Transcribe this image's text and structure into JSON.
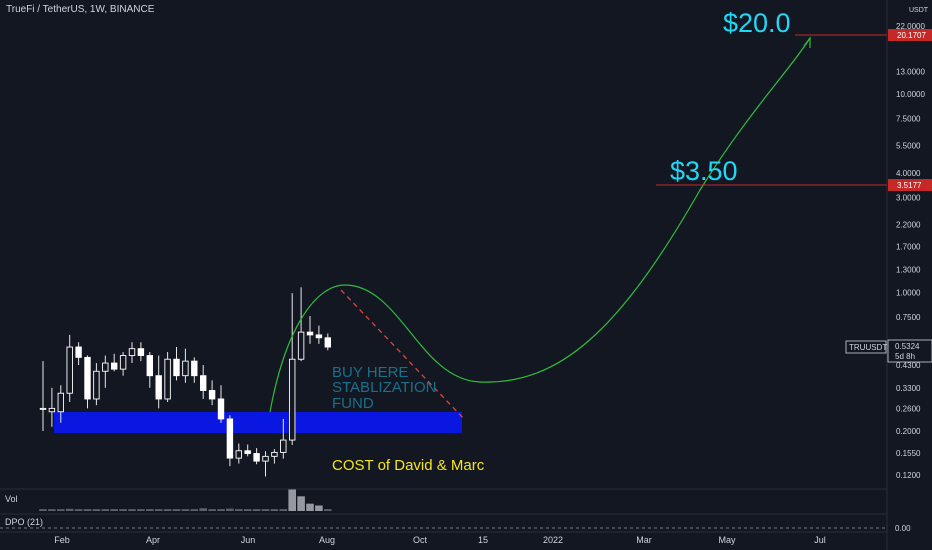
{
  "header": {
    "title": "TrueFi / TetherUS, 1W, BINANCE"
  },
  "panels": {
    "volume_label": "Vol",
    "dpo_label": "DPO (21)",
    "dpo_value": "0.00"
  },
  "annotations": {
    "target_20": "$20.0",
    "target_350": "$3.50",
    "buy_text": [
      "BUY HERE",
      "STABLIZATION",
      "FUND"
    ],
    "cost_text": "COST of David & Marc"
  },
  "price_tags": {
    "red_high": "20.1707",
    "red_mid": "3.5177",
    "symbol": "TRUUSDT",
    "last": "0.5324",
    "countdown": "5d 8h"
  },
  "colors": {
    "background": "#131722",
    "grid": "#1e222d",
    "text": "#d1d4dc",
    "candle_up": "#ffffff",
    "candle_down": "#ffffff",
    "green_path": "#2ebd3b",
    "red_dash": "#e0443a",
    "blue_zone": "#0a17e0",
    "cyan_text": "#1fd8f5",
    "teal_text": "#1a6f89",
    "yellow_text": "#f5e61c",
    "red_tag": "#c62828",
    "volume": "#b2b5be"
  },
  "chart_data": {
    "type": "candlestick",
    "title": "TrueFi / TetherUS, 1W, BINANCE",
    "y_axis": {
      "scale": "log",
      "unit": "USDT",
      "ticks": [
        "22.0000",
        "20.1707",
        "13.0000",
        "10.0000",
        "7.5000",
        "5.5000",
        "4.0000",
        "3.5177",
        "3.0000",
        "2.2000",
        "1.7000",
        "1.3000",
        "1.0000",
        "0.7500",
        "0.5324",
        "0.4300",
        "0.3300",
        "0.2600",
        "0.2000",
        "0.1550",
        "0.1200"
      ]
    },
    "x_axis": {
      "ticks": [
        "Feb",
        "Apr",
        "Jun",
        "Aug",
        "Oct",
        "15",
        "2022",
        "Mar",
        "May",
        "Jul"
      ]
    },
    "candles": [
      {
        "o": 0.26,
        "h": 0.45,
        "l": 0.2,
        "c": 0.26
      },
      {
        "o": 0.25,
        "h": 0.33,
        "l": 0.21,
        "c": 0.26
      },
      {
        "o": 0.25,
        "h": 0.34,
        "l": 0.22,
        "c": 0.31
      },
      {
        "o": 0.31,
        "h": 0.61,
        "l": 0.28,
        "c": 0.53
      },
      {
        "o": 0.53,
        "h": 0.56,
        "l": 0.43,
        "c": 0.47
      },
      {
        "o": 0.47,
        "h": 0.48,
        "l": 0.26,
        "c": 0.29
      },
      {
        "o": 0.29,
        "h": 0.44,
        "l": 0.27,
        "c": 0.4
      },
      {
        "o": 0.4,
        "h": 0.48,
        "l": 0.33,
        "c": 0.44
      },
      {
        "o": 0.44,
        "h": 0.49,
        "l": 0.4,
        "c": 0.41
      },
      {
        "o": 0.41,
        "h": 0.5,
        "l": 0.38,
        "c": 0.48
      },
      {
        "o": 0.48,
        "h": 0.56,
        "l": 0.44,
        "c": 0.52
      },
      {
        "o": 0.52,
        "h": 0.56,
        "l": 0.45,
        "c": 0.48
      },
      {
        "o": 0.48,
        "h": 0.5,
        "l": 0.33,
        "c": 0.38
      },
      {
        "o": 0.38,
        "h": 0.48,
        "l": 0.26,
        "c": 0.29
      },
      {
        "o": 0.29,
        "h": 0.5,
        "l": 0.28,
        "c": 0.46
      },
      {
        "o": 0.46,
        "h": 0.53,
        "l": 0.36,
        "c": 0.38
      },
      {
        "o": 0.38,
        "h": 0.52,
        "l": 0.35,
        "c": 0.45
      },
      {
        "o": 0.45,
        "h": 0.47,
        "l": 0.35,
        "c": 0.38
      },
      {
        "o": 0.38,
        "h": 0.43,
        "l": 0.29,
        "c": 0.32
      },
      {
        "o": 0.32,
        "h": 0.36,
        "l": 0.27,
        "c": 0.29
      },
      {
        "o": 0.29,
        "h": 0.34,
        "l": 0.22,
        "c": 0.23
      },
      {
        "o": 0.23,
        "h": 0.24,
        "l": 0.133,
        "c": 0.146
      },
      {
        "o": 0.146,
        "h": 0.173,
        "l": 0.137,
        "c": 0.159
      },
      {
        "o": 0.159,
        "h": 0.171,
        "l": 0.149,
        "c": 0.154
      },
      {
        "o": 0.154,
        "h": 0.164,
        "l": 0.136,
        "c": 0.141
      },
      {
        "o": 0.141,
        "h": 0.158,
        "l": 0.118,
        "c": 0.149
      },
      {
        "o": 0.149,
        "h": 0.162,
        "l": 0.137,
        "c": 0.156
      },
      {
        "o": 0.156,
        "h": 0.23,
        "l": 0.145,
        "c": 0.18
      },
      {
        "o": 0.18,
        "h": 0.99,
        "l": 0.17,
        "c": 0.46
      },
      {
        "o": 0.46,
        "h": 1.06,
        "l": 0.45,
        "c": 0.63
      },
      {
        "o": 0.63,
        "h": 0.76,
        "l": 0.55,
        "c": 0.61
      },
      {
        "o": 0.61,
        "h": 0.68,
        "l": 0.55,
        "c": 0.59
      },
      {
        "o": 0.59,
        "h": 0.62,
        "l": 0.51,
        "c": 0.53
      }
    ],
    "volume": [
      1,
      1,
      1,
      1.2,
      1,
      1,
      1,
      1,
      1,
      1,
      1,
      1,
      1,
      1,
      1,
      1,
      1,
      1,
      1.5,
      1,
      1,
      1.3,
      1,
      1,
      1,
      1,
      1,
      1,
      12,
      8,
      4,
      3,
      1
    ]
  }
}
